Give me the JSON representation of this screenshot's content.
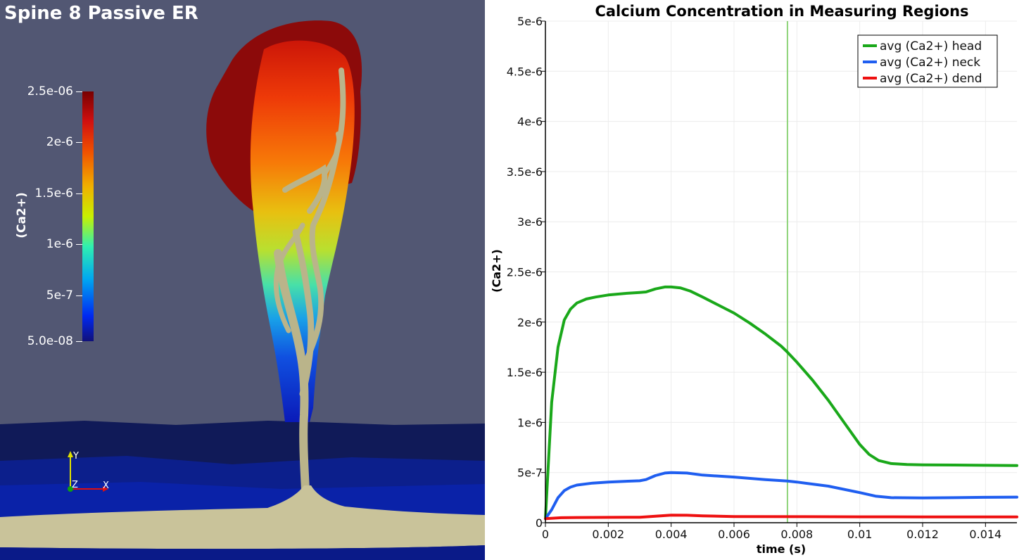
{
  "viewport": {
    "title": "Spine 8 Passive ER",
    "colorbar": {
      "label": "(Ca2+)",
      "ticks": [
        "2.5e-06",
        "2e-6",
        "1.5e-6",
        "1e-6",
        "5e-7",
        "5.0e-08"
      ],
      "tick_values": [
        2.5e-06,
        2e-06,
        1.5e-06,
        1e-06,
        5e-07,
        5e-08
      ],
      "range": [
        5e-08,
        2.5e-06
      ]
    },
    "orientation_axes": {
      "y": "Y",
      "z": "Z",
      "x": "X"
    }
  },
  "chart_data": {
    "type": "line",
    "title": "Calcium Concentration in Measuring Regions",
    "xlabel": "time (s)",
    "ylabel": "(Ca2+)",
    "xlim": [
      0,
      0.015
    ],
    "ylim": [
      0,
      5e-06
    ],
    "xticks": [
      "0",
      "0.002",
      "0.004",
      "0.006",
      "0.008",
      "0.01",
      "0.012",
      "0.014"
    ],
    "xtick_values": [
      0,
      0.002,
      0.004,
      0.006,
      0.008,
      0.01,
      0.012,
      0.014
    ],
    "yticks": [
      "0",
      "5e-7",
      "1e-6",
      "1.5e-6",
      "2e-6",
      "2.5e-6",
      "3e-6",
      "3.5e-6",
      "4e-6",
      "4.5e-6",
      "5e-6"
    ],
    "ytick_values": [
      0,
      5e-07,
      1e-06,
      1.5e-06,
      2e-06,
      2.5e-06,
      3e-06,
      3.5e-06,
      4e-06,
      4.5e-06,
      5e-06
    ],
    "grid": true,
    "legend_position": "top-right",
    "cursor_time": 0.0077,
    "series": [
      {
        "name": "avg (Ca2+) head",
        "color": "#1aa81a",
        "x": [
          0,
          0.0002,
          0.0004,
          0.0006,
          0.0008,
          0.001,
          0.0013,
          0.0016,
          0.002,
          0.0025,
          0.003,
          0.0032,
          0.0035,
          0.0038,
          0.004,
          0.0043,
          0.0046,
          0.005,
          0.0055,
          0.006,
          0.0065,
          0.007,
          0.0075,
          0.0077,
          0.008,
          0.0085,
          0.009,
          0.0095,
          0.01,
          0.0103,
          0.0106,
          0.011,
          0.0115,
          0.012,
          0.013,
          0.014,
          0.015
        ],
        "y": [
          4e-08,
          1.2e-06,
          1.75e-06,
          2.02e-06,
          2.13e-06,
          2.19e-06,
          2.23e-06,
          2.25e-06,
          2.27e-06,
          2.285e-06,
          2.295e-06,
          2.3e-06,
          2.33e-06,
          2.35e-06,
          2.35e-06,
          2.34e-06,
          2.31e-06,
          2.25e-06,
          2.17e-06,
          2.09e-06,
          1.99e-06,
          1.88e-06,
          1.76e-06,
          1.7e-06,
          1.6e-06,
          1.42e-06,
          1.22e-06,
          1e-06,
          7.8e-07,
          6.8e-07,
          6.2e-07,
          5.9e-07,
          5.8e-07,
          5.77e-07,
          5.75e-07,
          5.72e-07,
          5.7e-07
        ]
      },
      {
        "name": "avg (Ca2+) neck",
        "color": "#1f5ef0",
        "x": [
          0,
          0.0002,
          0.0004,
          0.0006,
          0.0008,
          0.001,
          0.0015,
          0.002,
          0.0025,
          0.003,
          0.0032,
          0.0035,
          0.0038,
          0.004,
          0.0045,
          0.005,
          0.006,
          0.007,
          0.0077,
          0.008,
          0.009,
          0.01,
          0.0105,
          0.011,
          0.012,
          0.013,
          0.014,
          0.015
        ],
        "y": [
          4e-08,
          1.3e-07,
          2.5e-07,
          3.2e-07,
          3.55e-07,
          3.75e-07,
          3.95e-07,
          4.05e-07,
          4.12e-07,
          4.18e-07,
          4.3e-07,
          4.7e-07,
          4.95e-07,
          5e-07,
          4.95e-07,
          4.75e-07,
          4.55e-07,
          4.3e-07,
          4.15e-07,
          4.05e-07,
          3.65e-07,
          3e-07,
          2.65e-07,
          2.5e-07,
          2.47e-07,
          2.5e-07,
          2.53e-07,
          2.55e-07
        ]
      },
      {
        "name": "avg (Ca2+) dend",
        "color": "#ee1010",
        "x": [
          0,
          0.0005,
          0.001,
          0.002,
          0.003,
          0.0035,
          0.004,
          0.0045,
          0.005,
          0.006,
          0.008,
          0.01,
          0.012,
          0.015
        ],
        "y": [
          4e-08,
          5e-08,
          5.2e-08,
          5.3e-08,
          5.5e-08,
          6.5e-08,
          7.5e-08,
          7.4e-08,
          6.8e-08,
          6.2e-08,
          6e-08,
          5.9e-08,
          5.8e-08,
          5.8e-08
        ]
      }
    ]
  }
}
